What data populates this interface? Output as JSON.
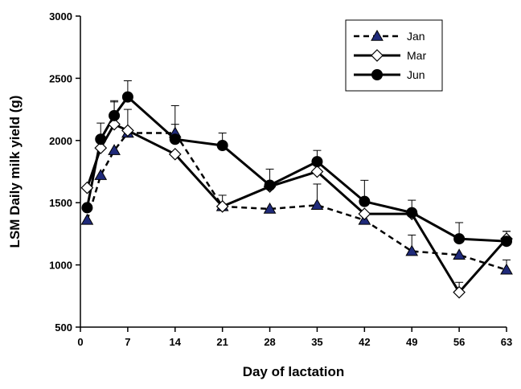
{
  "chart_data": {
    "type": "line",
    "xlabel": "Day of lactation",
    "ylabel": "LSM Daily milk yield (g)",
    "xlim": [
      0,
      63
    ],
    "ylim": [
      500,
      3000
    ],
    "xticks": [
      0,
      7,
      14,
      21,
      28,
      35,
      42,
      49,
      56,
      63
    ],
    "yticks": [
      500,
      1000,
      1500,
      2000,
      2500,
      3000
    ],
    "grid": false,
    "legend_position": "top-right",
    "series": [
      {
        "name": "Jan",
        "line": "dashed",
        "marker": "triangle",
        "marker_fill": "#1f2a7a",
        "x": [
          1,
          3,
          5,
          7,
          14,
          21,
          28,
          35,
          42,
          49,
          56,
          63
        ],
        "y": [
          1360,
          1720,
          1920,
          2060,
          2060,
          1470,
          1450,
          1480,
          1360,
          1110,
          1080,
          960
        ],
        "error": [
          0,
          0,
          0,
          0,
          220,
          0,
          0,
          170,
          0,
          130,
          0,
          80
        ]
      },
      {
        "name": "Mar",
        "line": "solid",
        "marker": "diamond",
        "marker_fill": "#ffffff",
        "x": [
          1,
          3,
          5,
          7,
          14,
          21,
          28,
          35,
          42,
          49,
          56,
          63
        ],
        "y": [
          1620,
          1940,
          2130,
          2080,
          1890,
          1470,
          1630,
          1750,
          1410,
          1410,
          780,
          1210
        ],
        "error": [
          0,
          0,
          190,
          170,
          0,
          90,
          0,
          0,
          0,
          0,
          80,
          60
        ]
      },
      {
        "name": "Jun",
        "line": "solid",
        "marker": "circle",
        "marker_fill": "#000000",
        "x": [
          1,
          3,
          5,
          7,
          14,
          21,
          28,
          35,
          42,
          49,
          56,
          63
        ],
        "y": [
          1460,
          2010,
          2200,
          2350,
          2010,
          1960,
          1640,
          1830,
          1510,
          1420,
          1210,
          1190
        ],
        "error": [
          0,
          130,
          110,
          130,
          120,
          100,
          130,
          90,
          170,
          100,
          130,
          80
        ]
      }
    ]
  }
}
